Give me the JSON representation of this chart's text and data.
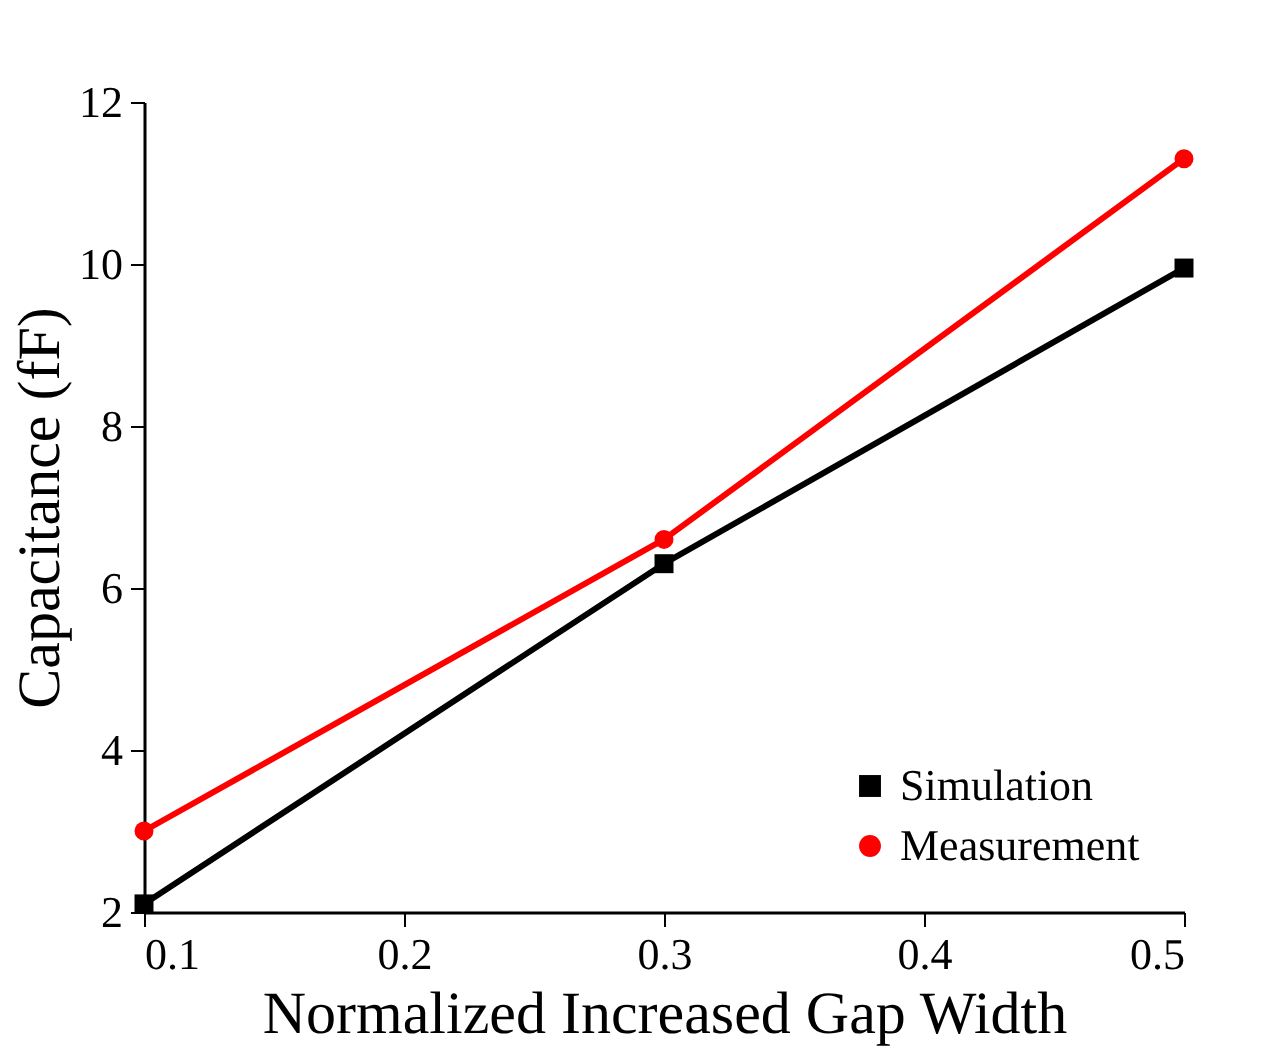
{
  "chart_data": {
    "type": "line",
    "xlabel": "Normalized Increased Gap Width",
    "ylabel": "Capacitance (fF)",
    "x": [
      0.1,
      0.3,
      0.5
    ],
    "series": [
      {
        "name": "Simulation",
        "color": "#000000",
        "marker": "square",
        "values": [
          2.1,
          6.3,
          9.95
        ]
      },
      {
        "name": "Measurement",
        "color": "#ff0000",
        "marker": "circle",
        "values": [
          3.0,
          6.6,
          11.3
        ]
      }
    ],
    "xlim": [
      0.1,
      0.5
    ],
    "xticks": [
      0.1,
      0.2,
      0.3,
      0.4,
      0.5
    ],
    "ylim": [
      2,
      12
    ],
    "yticks": [
      2,
      4,
      6,
      8,
      10,
      12
    ],
    "grid": false,
    "legend": "bottom right",
    "line_style": "solid"
  }
}
